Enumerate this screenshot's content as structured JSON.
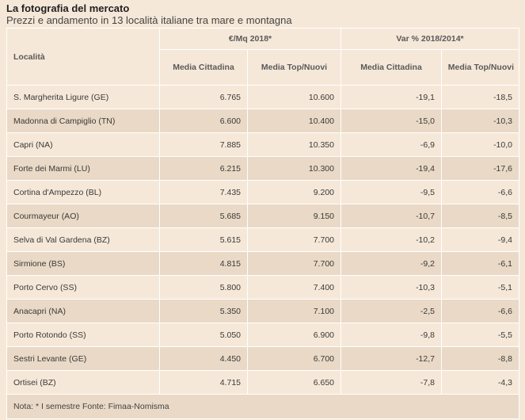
{
  "title": "La fotografia del mercato",
  "subtitle": "Prezzi e andamento in 13 località italiane tra mare e montagna",
  "table": {
    "location_header": "Località",
    "group_headers": [
      "€/Mq 2018*",
      "Var % 2018/2014*"
    ],
    "sub_headers": [
      "Media Cittadina",
      "Media Top/Nuovi",
      "Media Cittadina",
      "Media Top/Nuovi"
    ],
    "rows": [
      {
        "name": "S. Margherita Ligure (GE)",
        "v1": "6.765",
        "v2": "10.600",
        "v3": "-19,1",
        "v4": "-18,5"
      },
      {
        "name": "Madonna di Campiglio (TN)",
        "v1": "6.600",
        "v2": "10.400",
        "v3": "-15,0",
        "v4": "-10,3"
      },
      {
        "name": "Capri (NA)",
        "v1": "7.885",
        "v2": "10.350",
        "v3": "-6,9",
        "v4": "-10,0"
      },
      {
        "name": "Forte dei Marmi (LU)",
        "v1": "6.215",
        "v2": "10.300",
        "v3": "-19,4",
        "v4": "-17,6"
      },
      {
        "name": "Cortina d'Ampezzo (BL)",
        "v1": "7.435",
        "v2": "9.200",
        "v3": "-9,5",
        "v4": "-6,6"
      },
      {
        "name": "Courmayeur (AO)",
        "v1": "5.685",
        "v2": "9.150",
        "v3": "-10,7",
        "v4": "-8,5"
      },
      {
        "name": "Selva di Val Gardena (BZ)",
        "v1": "5.615",
        "v2": "7.700",
        "v3": "-10,2",
        "v4": "-9,4"
      },
      {
        "name": "Sirmione (BS)",
        "v1": "4.815",
        "v2": "7.700",
        "v3": "-9,2",
        "v4": "-6,1"
      },
      {
        "name": "Porto Cervo (SS)",
        "v1": "5.800",
        "v2": "7.400",
        "v3": "-10,3",
        "v4": "-5,1"
      },
      {
        "name": "Anacapri (NA)",
        "v1": "5.350",
        "v2": "7.100",
        "v3": "-2,5",
        "v4": "-6,6"
      },
      {
        "name": "Porto Rotondo (SS)",
        "v1": "5.050",
        "v2": "6.900",
        "v3": "-9,8",
        "v4": "-5,5"
      },
      {
        "name": "Sestri Levante (GE)",
        "v1": "4.450",
        "v2": "6.700",
        "v3": "-12,7",
        "v4": "-8,8"
      },
      {
        "name": "Ortisei (BZ)",
        "v1": "4.715",
        "v2": "6.650",
        "v3": "-7,8",
        "v4": "-4,3"
      }
    ],
    "note": "Nota: * I semestre Fonte: Fimaa-Nomisma"
  }
}
